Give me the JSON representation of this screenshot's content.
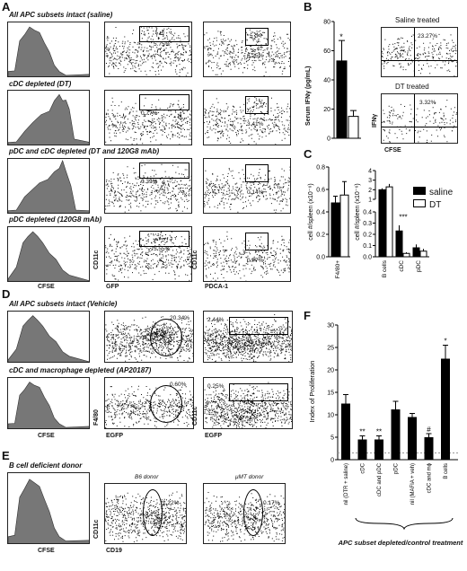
{
  "panels": {
    "A": "A",
    "B": "B",
    "C": "C",
    "D": "D",
    "E": "E",
    "F": "F"
  },
  "sectionA": {
    "rows": [
      {
        "title": "All APC subsets intact (saline)",
        "gfp_pct": "5.75%",
        "pdca_pct": "6.25%"
      },
      {
        "title": "cDC depleted (DT)",
        "gfp_pct": "0.77%",
        "pdca_pct": "3.41%"
      },
      {
        "title": "pDC  and cDC depleted (DT and 120G8 mAb)",
        "gfp_pct": "0.39%",
        "pdca_pct": "0.14%"
      },
      {
        "title": "pDC depleted (120G8 mAb)",
        "gfp_pct": "5.55%",
        "pdca_pct": "0.77%"
      }
    ],
    "axis_cfse": "CFSE",
    "axis_cd11c": "CD11c",
    "axis_gfp": "GFP",
    "axis_pdca": "PDCA-1"
  },
  "sectionB": {
    "ylabel": "Serum IFNγ (pg/mL)",
    "star": "*",
    "saline_title": "Saline treated",
    "saline_pct": "23.27%",
    "dt_title": "DT treated",
    "dt_pct": "3.32%",
    "axis_ifn": "IFNγ",
    "axis_cfse": "CFSE"
  },
  "sectionC": {
    "ylabel": "cell #/spleen (x10⁻⁶)",
    "left_cat": "F4/80+",
    "right_cats": [
      "B cells",
      "cDC",
      "pDC"
    ],
    "legend": [
      "saline",
      "DT"
    ],
    "stars": "***"
  },
  "sectionD": {
    "rows": [
      {
        "title": "All APC subsets intact (Vehicle)",
        "f480_pct": "20.34%",
        "cd11c_pct": "2.44%"
      },
      {
        "title": "cDC and macrophage depleted (AP20187)",
        "f480_pct": "0.60%",
        "cd11c_pct": "0.25%"
      }
    ],
    "axis_cfse": "CFSE",
    "axis_f480": "F4/80",
    "axis_egfp": "EGFP",
    "axis_cd11c": "CD11c"
  },
  "sectionE": {
    "title": "B cell deficient donor",
    "b6_title": "B6 donor",
    "b6_pct": "1.22%",
    "umt_title": "μMT donor",
    "umt_pct": "0.17%",
    "axis_cfse": "CFSE",
    "axis_cd11c": "CD11c",
    "axis_cd19": "CD19"
  },
  "sectionF": {
    "ylabel": "Index of Proliferation",
    "footer": "APC subset depleted/control treatment",
    "categories": [
      "nil (DTR + saline)",
      "cDC",
      "cDC and pDC",
      "pDC",
      "nil (MAFIA + veh)",
      "cDC and mϕ",
      "B cells"
    ],
    "marks": [
      "",
      "**",
      "**",
      "",
      "",
      "#",
      "*"
    ]
  },
  "chart_data": [
    {
      "type": "bar",
      "title": "",
      "ylabel": "Serum IFNγ (pg/mL)",
      "categories": [
        "Saline",
        "DT"
      ],
      "values": [
        53,
        15
      ],
      "errors": [
        14,
        4
      ],
      "ylim": [
        0,
        80
      ],
      "yticks": [
        0,
        20,
        40,
        60,
        80
      ]
    },
    {
      "type": "bar",
      "title": "",
      "ylabel": "cell #/spleen (x10⁻⁶)",
      "categories": [
        "F4/80+"
      ],
      "series": [
        {
          "name": "saline",
          "values": [
            0.48
          ]
        },
        {
          "name": "DT",
          "values": [
            0.55
          ]
        }
      ],
      "ylim": [
        0,
        0.8
      ],
      "yticks": [
        0,
        0.2,
        0.4,
        0.6,
        0.8
      ]
    },
    {
      "type": "bar",
      "title": "",
      "ylabel": "cell #/spleen (x10⁻⁶)",
      "categories": [
        "B cells",
        "cDC",
        "pDC"
      ],
      "series": [
        {
          "name": "saline",
          "values": [
            2.0,
            0.23,
            0.08
          ]
        },
        {
          "name": "DT",
          "values": [
            2.3,
            0.03,
            0.05
          ]
        }
      ],
      "yticks": [
        0,
        0.1,
        0.2,
        0.3,
        0.4,
        1,
        2,
        3,
        4
      ]
    },
    {
      "type": "bar",
      "title": "",
      "ylabel": "Index of Proliferation",
      "categories": [
        "nil (DTR + saline)",
        "cDC",
        "cDC and pDC",
        "pDC",
        "nil (MAFIA + veh)",
        "cDC and mϕ",
        "B cells"
      ],
      "values": [
        12.5,
        4.5,
        4.5,
        11.2,
        9.5,
        5,
        22.5
      ],
      "errors": [
        2,
        0.8,
        0.8,
        1.8,
        0.8,
        0.8,
        3
      ],
      "ylim": [
        0,
        30
      ],
      "yticks": [
        0,
        5,
        10,
        15,
        20,
        25,
        30
      ]
    }
  ]
}
